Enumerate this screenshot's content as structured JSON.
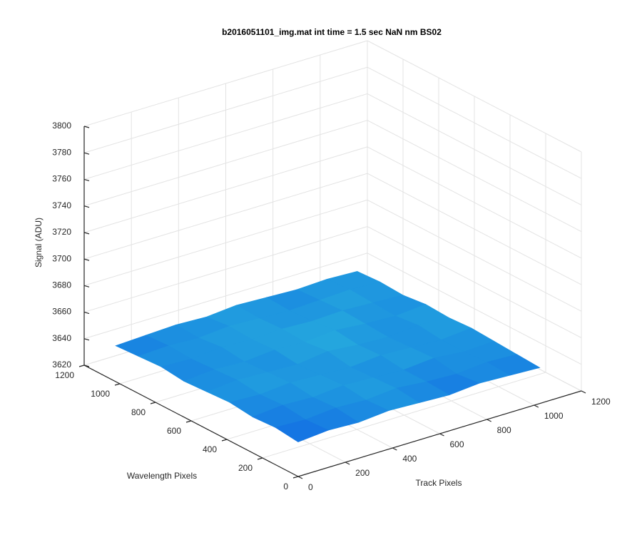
{
  "chart_data": {
    "type": "surface",
    "title": "b2016051101_img.mat int time = 1.5 sec  NaN nm BS02",
    "x_label": "Track Pixels",
    "y_label": "Wavelength Pixels",
    "z_label": "Signal (ADU)",
    "x": [
      0,
      128,
      256,
      384,
      512,
      640,
      768,
      896,
      1024
    ],
    "y": [
      0,
      128,
      256,
      384,
      512,
      640,
      768,
      896,
      1024
    ],
    "z": [
      [
        3646,
        3648,
        3647,
        3649,
        3648,
        3647,
        3649,
        3648,
        3647
      ],
      [
        3648,
        3647,
        3649,
        3648,
        3650,
        3648,
        3647,
        3649,
        3648
      ],
      [
        3647,
        3649,
        3648,
        3650,
        3649,
        3648,
        3650,
        3648,
        3649
      ],
      [
        3649,
        3648,
        3650,
        3649,
        3648,
        3650,
        3649,
        3648,
        3650
      ],
      [
        3648,
        3650,
        3649,
        3648,
        3651,
        3649,
        3648,
        3650,
        3649
      ],
      [
        3647,
        3649,
        3648,
        3650,
        3649,
        3651,
        3649,
        3648,
        3650
      ],
      [
        3649,
        3648,
        3650,
        3649,
        3650,
        3649,
        3650,
        3649,
        3648
      ],
      [
        3648,
        3649,
        3648,
        3650,
        3649,
        3648,
        3649,
        3650,
        3649
      ],
      [
        3647,
        3648,
        3649,
        3648,
        3650,
        3649,
        3648,
        3649,
        3648
      ]
    ],
    "colormap": [
      "#0d5de6",
      "#1c8fe0",
      "#2ab6dc"
    ],
    "xlim": [
      0,
      1200
    ],
    "ylim": [
      0,
      1200
    ],
    "zlim": [
      3620,
      3800
    ],
    "xticks": [
      0,
      200,
      400,
      600,
      800,
      1000,
      1200
    ],
    "yticks": [
      0,
      200,
      400,
      600,
      800,
      1000,
      1200
    ],
    "zticks": [
      3620,
      3640,
      3660,
      3680,
      3700,
      3720,
      3740,
      3760,
      3780,
      3800
    ],
    "grid": true
  }
}
